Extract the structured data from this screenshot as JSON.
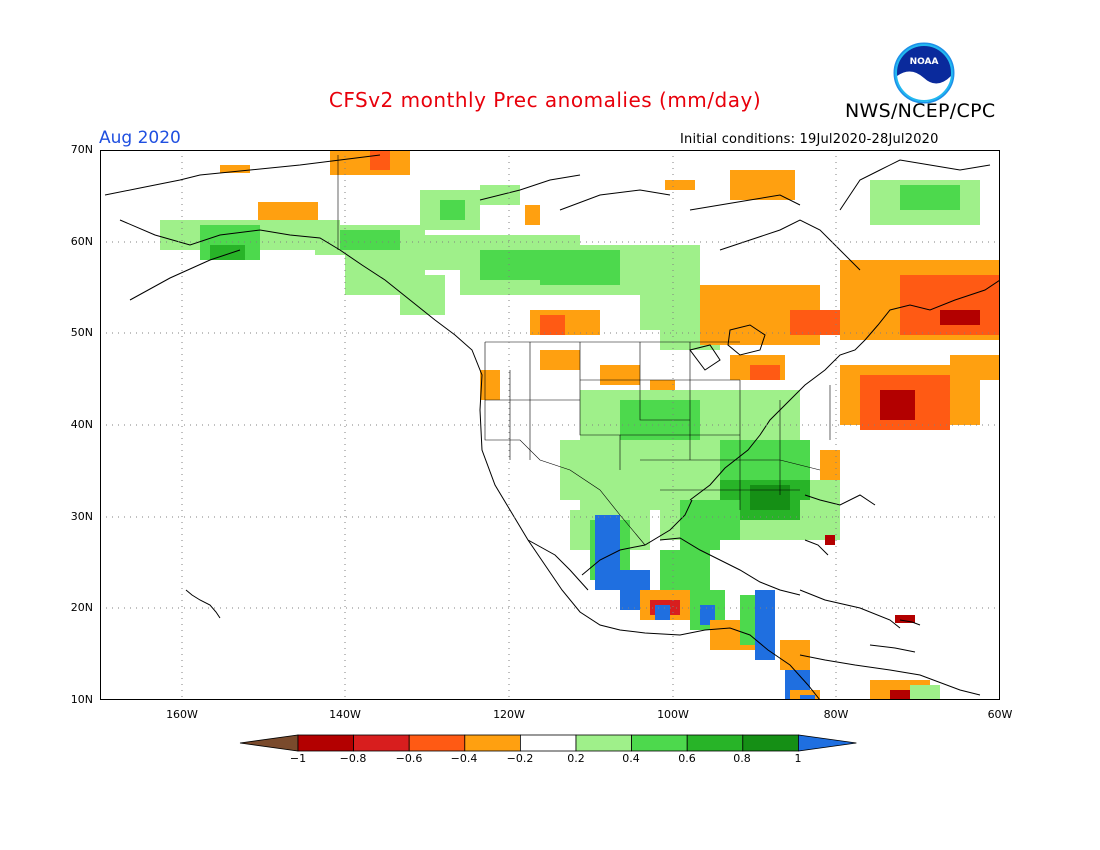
{
  "header": {
    "title": "CFSv2 monthly Prec anomalies (mm/day)",
    "agency": "NWS/NCEP/CPC",
    "logo_text": "NOAA",
    "month": "Aug 2020",
    "initial_conditions": "Initial conditions: 19Jul2020-28Jul2020"
  },
  "map": {
    "lat_labels": [
      "70N",
      "60N",
      "50N",
      "40N",
      "30N",
      "20N",
      "10N"
    ],
    "lon_labels": [
      "160W",
      "140W",
      "120W",
      "100W",
      "80W",
      "60W"
    ],
    "grid": "dotted",
    "extent": {
      "lon": [
        -170,
        -60
      ],
      "lat": [
        10,
        70
      ]
    }
  },
  "colorbar": {
    "tick_labels": [
      "−1",
      "−0.8",
      "−0.6",
      "−0.4",
      "−0.2",
      "0.2",
      "0.4",
      "0.6",
      "0.8",
      "1"
    ],
    "colors": [
      "#7a4a2c",
      "#b30000",
      "#d81e1e",
      "#ff5a14",
      "#ffa010",
      "#ffffff",
      "#9ff08a",
      "#4dd94d",
      "#28b428",
      "#158f15",
      "#1f6fe0"
    ]
  }
}
